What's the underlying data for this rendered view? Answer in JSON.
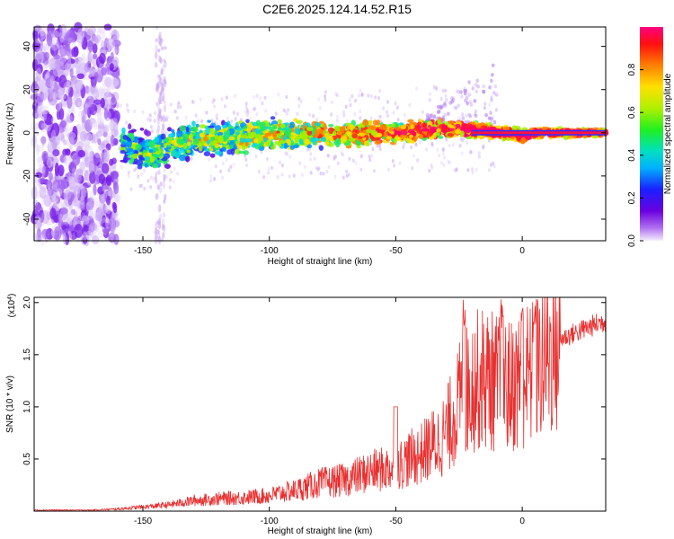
{
  "title": "C2E6.2025.124.14.52.R15",
  "colorbar": {
    "label": "Normalized spectral amplitude",
    "ticks": [
      "0.0",
      "0.2",
      "0.4",
      "0.6",
      "0.8"
    ],
    "tick_values": [
      0.0,
      0.2,
      0.4,
      0.6,
      0.8
    ]
  },
  "chart_data": [
    {
      "type": "heatmap",
      "name": "spectrogram",
      "xlabel": "Height of straight line (km)",
      "ylabel": "Frequency (Hz)",
      "xlim": [
        -193,
        33
      ],
      "ylim": [
        -50,
        49
      ],
      "xticks": [
        -150,
        -100,
        -50,
        0
      ],
      "yticks": [
        -40,
        -20,
        0,
        20,
        40
      ],
      "ridge": {
        "x": [
          -157,
          -148,
          -140,
          -130,
          -120,
          -110,
          -100,
          -90,
          -80,
          -70,
          -60,
          -50,
          -40,
          -30,
          -25,
          -20,
          -15,
          -10,
          -5,
          0,
          5,
          10,
          20,
          30
        ],
        "y": [
          -5,
          -10,
          -7,
          -3,
          -3,
          -2,
          -1,
          -1,
          0,
          -1,
          0,
          0,
          1,
          2,
          2,
          1,
          1,
          0,
          0,
          -2,
          0,
          0,
          0,
          0
        ]
      },
      "noise_region_x": [
        -193,
        -160
      ]
    },
    {
      "type": "line",
      "name": "snr",
      "xlabel": "Height of straight line (km)",
      "ylabel": "SNR (10 * v/v)",
      "yscale_label": "(x10⁴)",
      "xlim": [
        -193,
        33
      ],
      "ylim": [
        0,
        2.05
      ],
      "xticks": [
        -150,
        -100,
        -50,
        0
      ],
      "yticks": [
        0.5,
        1.0,
        1.5,
        2.0
      ],
      "yticklabels": [
        "0.5",
        "1.0",
        "1.5",
        "2.0"
      ],
      "color": "#e83030",
      "envelope": {
        "x": [
          -193,
          -170,
          -160,
          -150,
          -140,
          -130,
          -120,
          -110,
          -100,
          -90,
          -80,
          -70,
          -60,
          -50,
          -45,
          -40,
          -35,
          -30,
          -25,
          -20,
          -15,
          -10,
          -5,
          0,
          5,
          10,
          15,
          20,
          25,
          30,
          33
        ],
        "y": [
          0.01,
          0.01,
          0.02,
          0.04,
          0.06,
          0.1,
          0.12,
          0.13,
          0.15,
          0.2,
          0.27,
          0.3,
          0.38,
          0.42,
          0.5,
          0.55,
          0.65,
          0.8,
          1.1,
          1.3,
          1.35,
          1.3,
          1.25,
          1.35,
          1.4,
          1.6,
          1.65,
          1.7,
          1.75,
          1.8,
          1.82
        ]
      }
    }
  ]
}
